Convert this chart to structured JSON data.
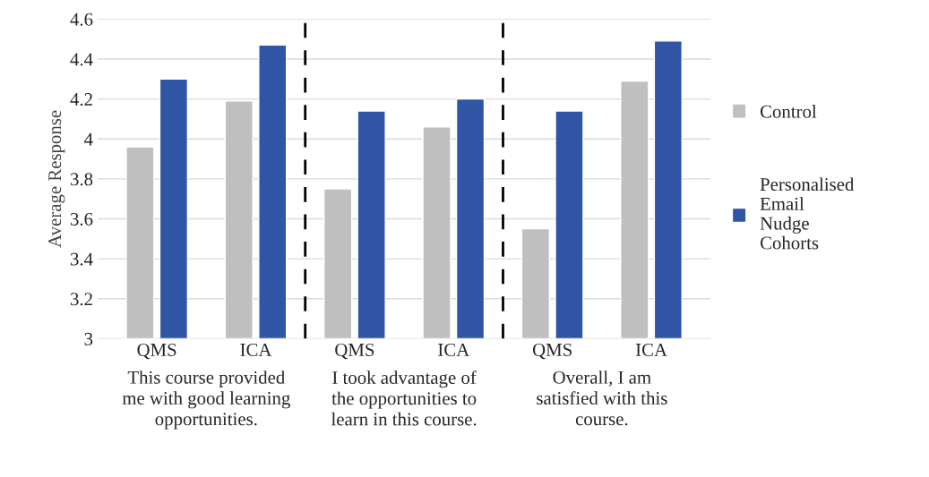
{
  "chart_data": {
    "type": "bar",
    "ylabel": "Average Response",
    "categories": [
      "QMS",
      "ICA",
      "QMS",
      "ICA",
      "QMS",
      "ICA"
    ],
    "series": [
      {
        "name": "Control",
        "color": "#bfbfbf",
        "values": [
          3.96,
          4.19,
          3.75,
          4.06,
          3.55,
          4.29
        ]
      },
      {
        "name": "Personalised\nEmail\nNudge\nCohorts",
        "color": "#2f55a4",
        "values": [
          4.3,
          4.47,
          4.14,
          4.2,
          4.14,
          4.49
        ]
      }
    ],
    "ylim": [
      3,
      4.6
    ],
    "yticks": [
      3,
      3.2,
      3.4,
      3.6,
      3.8,
      4,
      4.2,
      4.4,
      4.6
    ],
    "grid": "y",
    "legend": "right",
    "annotations": [
      "This course provided\nme with good learning\nopportunities.",
      "I took advantage of\nthe opportunities to\nlearn in this course.",
      "Overall, I am\nsatisfied with this\ncourse."
    ]
  }
}
